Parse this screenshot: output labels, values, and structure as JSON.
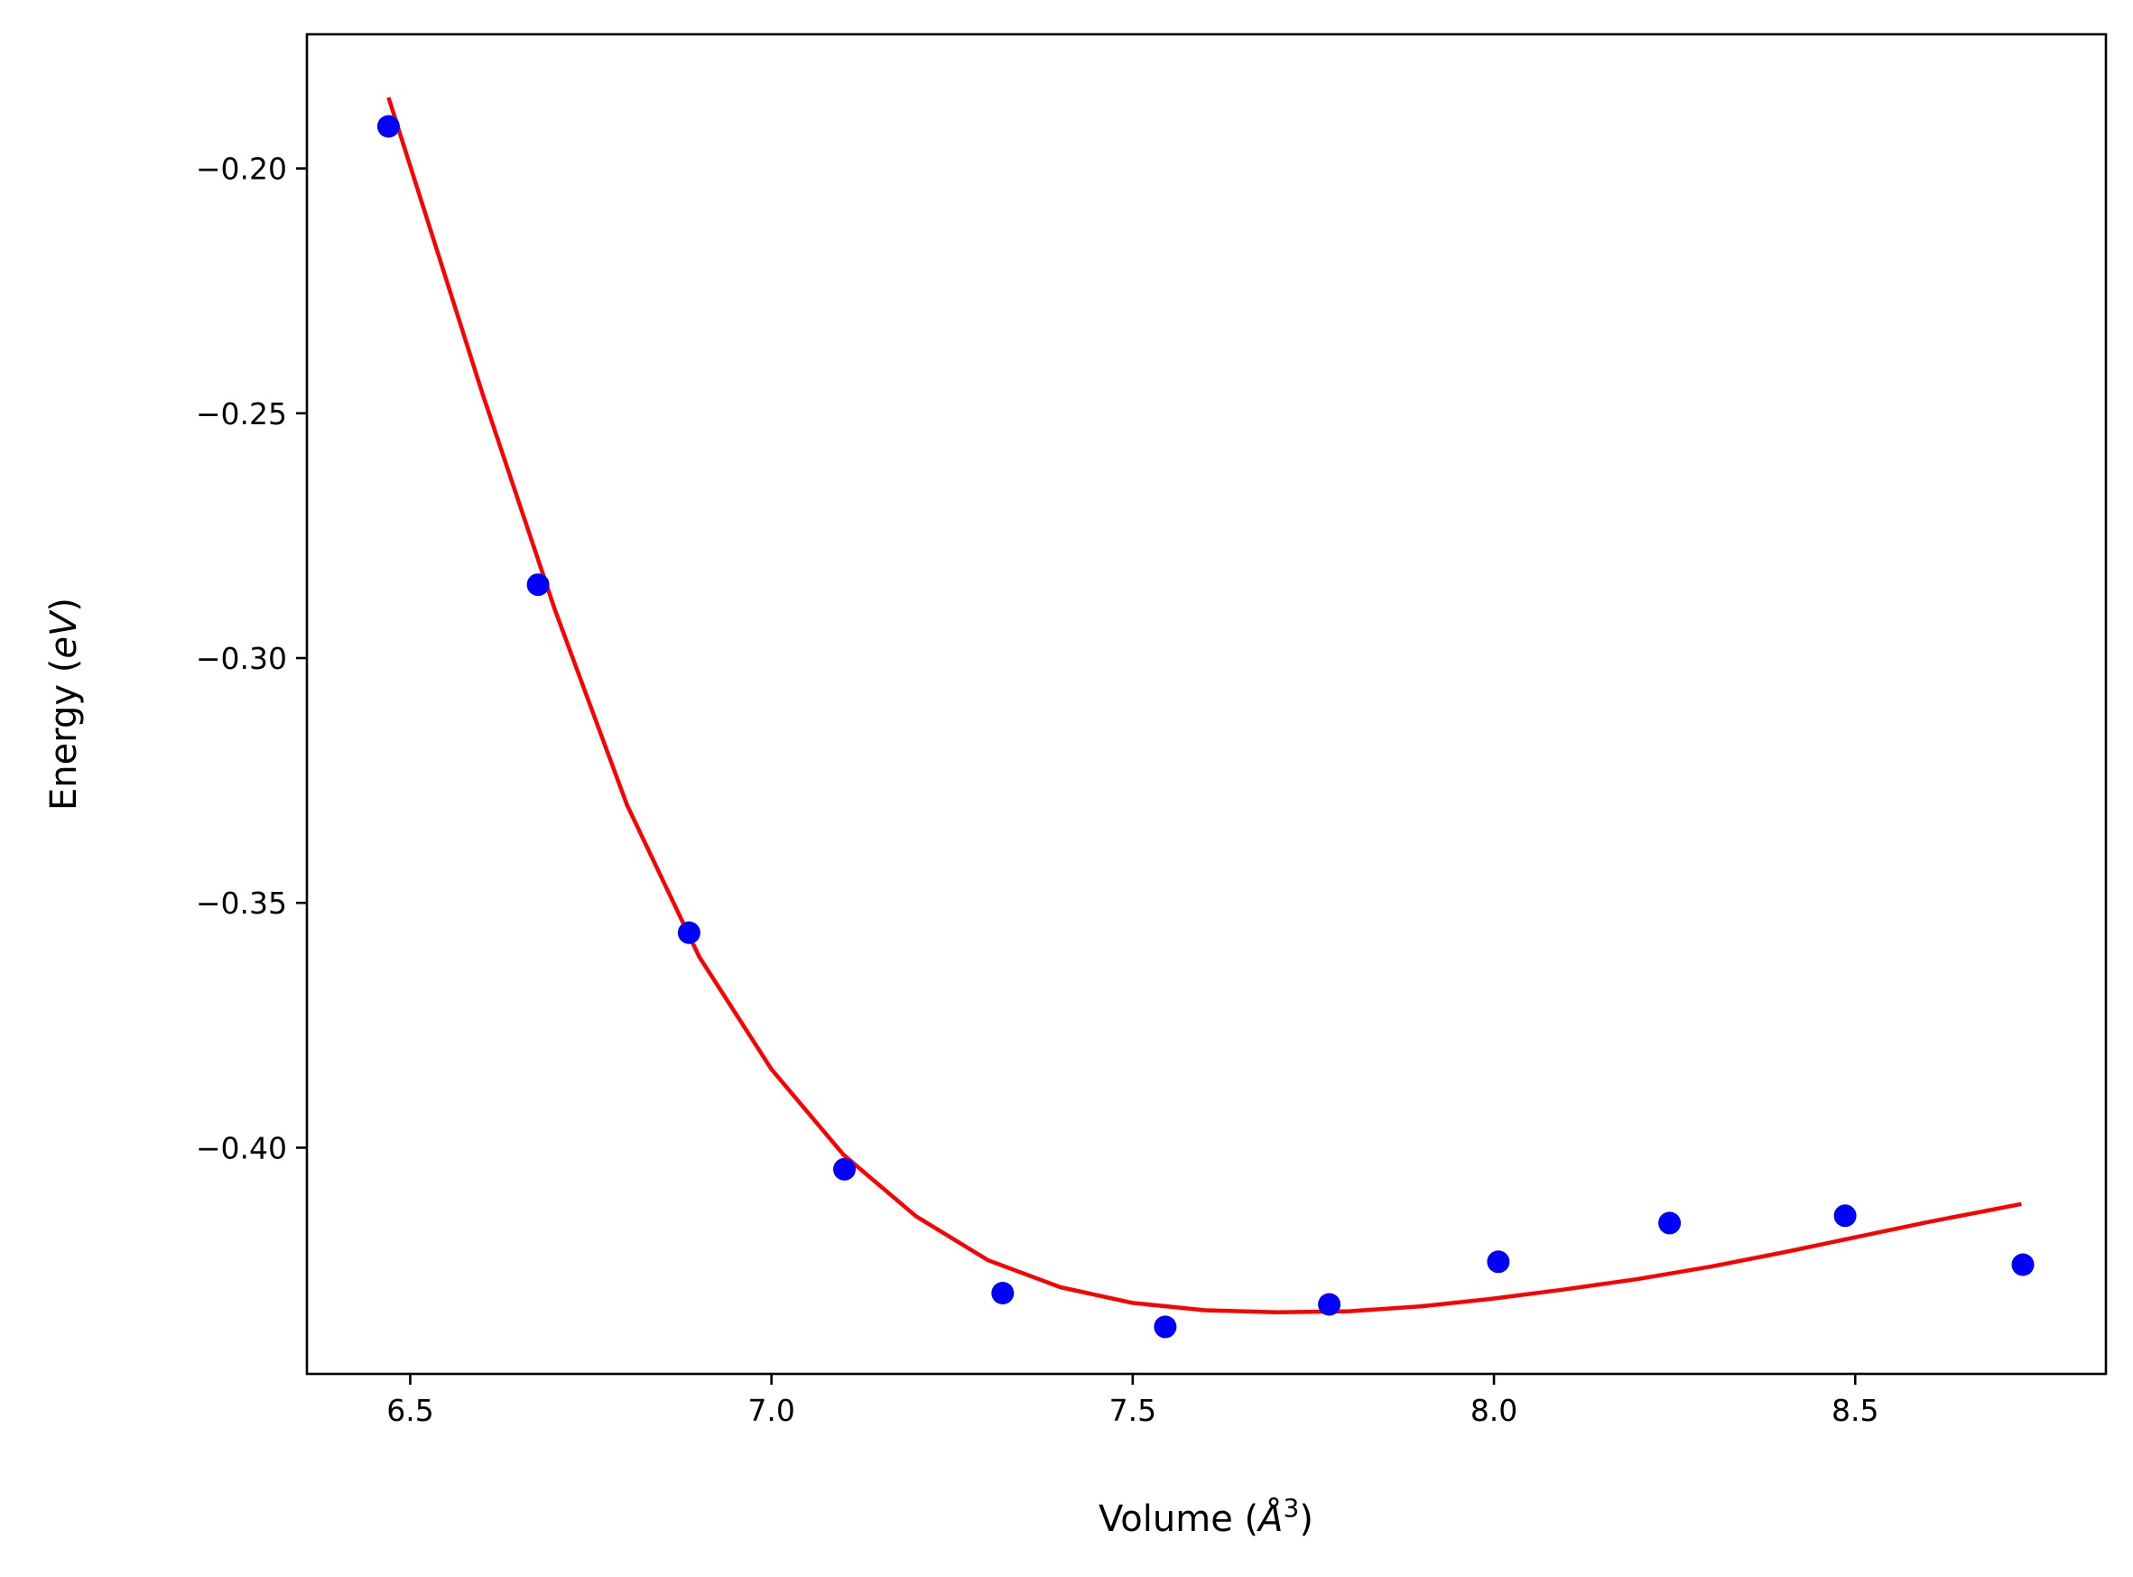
{
  "chart_data": {
    "type": "scatter",
    "title": "",
    "xlabel": "Volume ($\\AA^3$)",
    "ylabel": "Energy ($eV$)",
    "xlabel_parts": {
      "prefix": "Volume (",
      "unit": "Å",
      "exp": "3",
      "suffix": ")"
    },
    "ylabel_parts": {
      "prefix": "Energy (",
      "unit": "eV",
      "suffix": ")"
    },
    "xlim": [
      6.357,
      8.847
    ],
    "ylim": [
      -0.4462,
      -0.1726
    ],
    "x_ticks": [
      6.5,
      7.0,
      7.5,
      8.0,
      8.5
    ],
    "x_tick_labels": [
      "6.5",
      "7.0",
      "7.5",
      "8.0",
      "8.5"
    ],
    "y_ticks": [
      -0.2,
      -0.25,
      -0.3,
      -0.35,
      -0.4
    ],
    "y_tick_labels": [
      "−0.20",
      "−0.25",
      "−0.30",
      "−0.35",
      "−0.40"
    ],
    "grid": false,
    "legend": "none",
    "series": [
      {
        "type": "scatter",
        "color": "#0000ff",
        "x": [
          6.47,
          6.677,
          6.886,
          7.101,
          7.32,
          7.545,
          7.772,
          8.006,
          8.243,
          8.486,
          8.732
        ],
        "y": [
          -0.1914,
          -0.285,
          -0.3561,
          -0.4044,
          -0.4297,
          -0.4366,
          -0.432,
          -0.4233,
          -0.4154,
          -0.4139,
          -0.4239
        ]
      },
      {
        "type": "line",
        "color": "#ff0000",
        "x": [
          6.47,
          6.6,
          6.7,
          6.8,
          6.9,
          7.0,
          7.1,
          7.2,
          7.3,
          7.4,
          7.5,
          7.6,
          7.7,
          7.8,
          7.9,
          8.0,
          8.1,
          8.2,
          8.3,
          8.4,
          8.5,
          8.6,
          8.73
        ],
        "y": [
          -0.1855,
          -0.246,
          -0.29,
          -0.33,
          -0.361,
          -0.384,
          -0.4015,
          -0.414,
          -0.423,
          -0.4285,
          -0.4317,
          -0.4332,
          -0.4336,
          -0.4334,
          -0.4324,
          -0.4308,
          -0.4289,
          -0.4268,
          -0.4243,
          -0.4214,
          -0.4183,
          -0.4152,
          -0.4115
        ]
      }
    ]
  }
}
